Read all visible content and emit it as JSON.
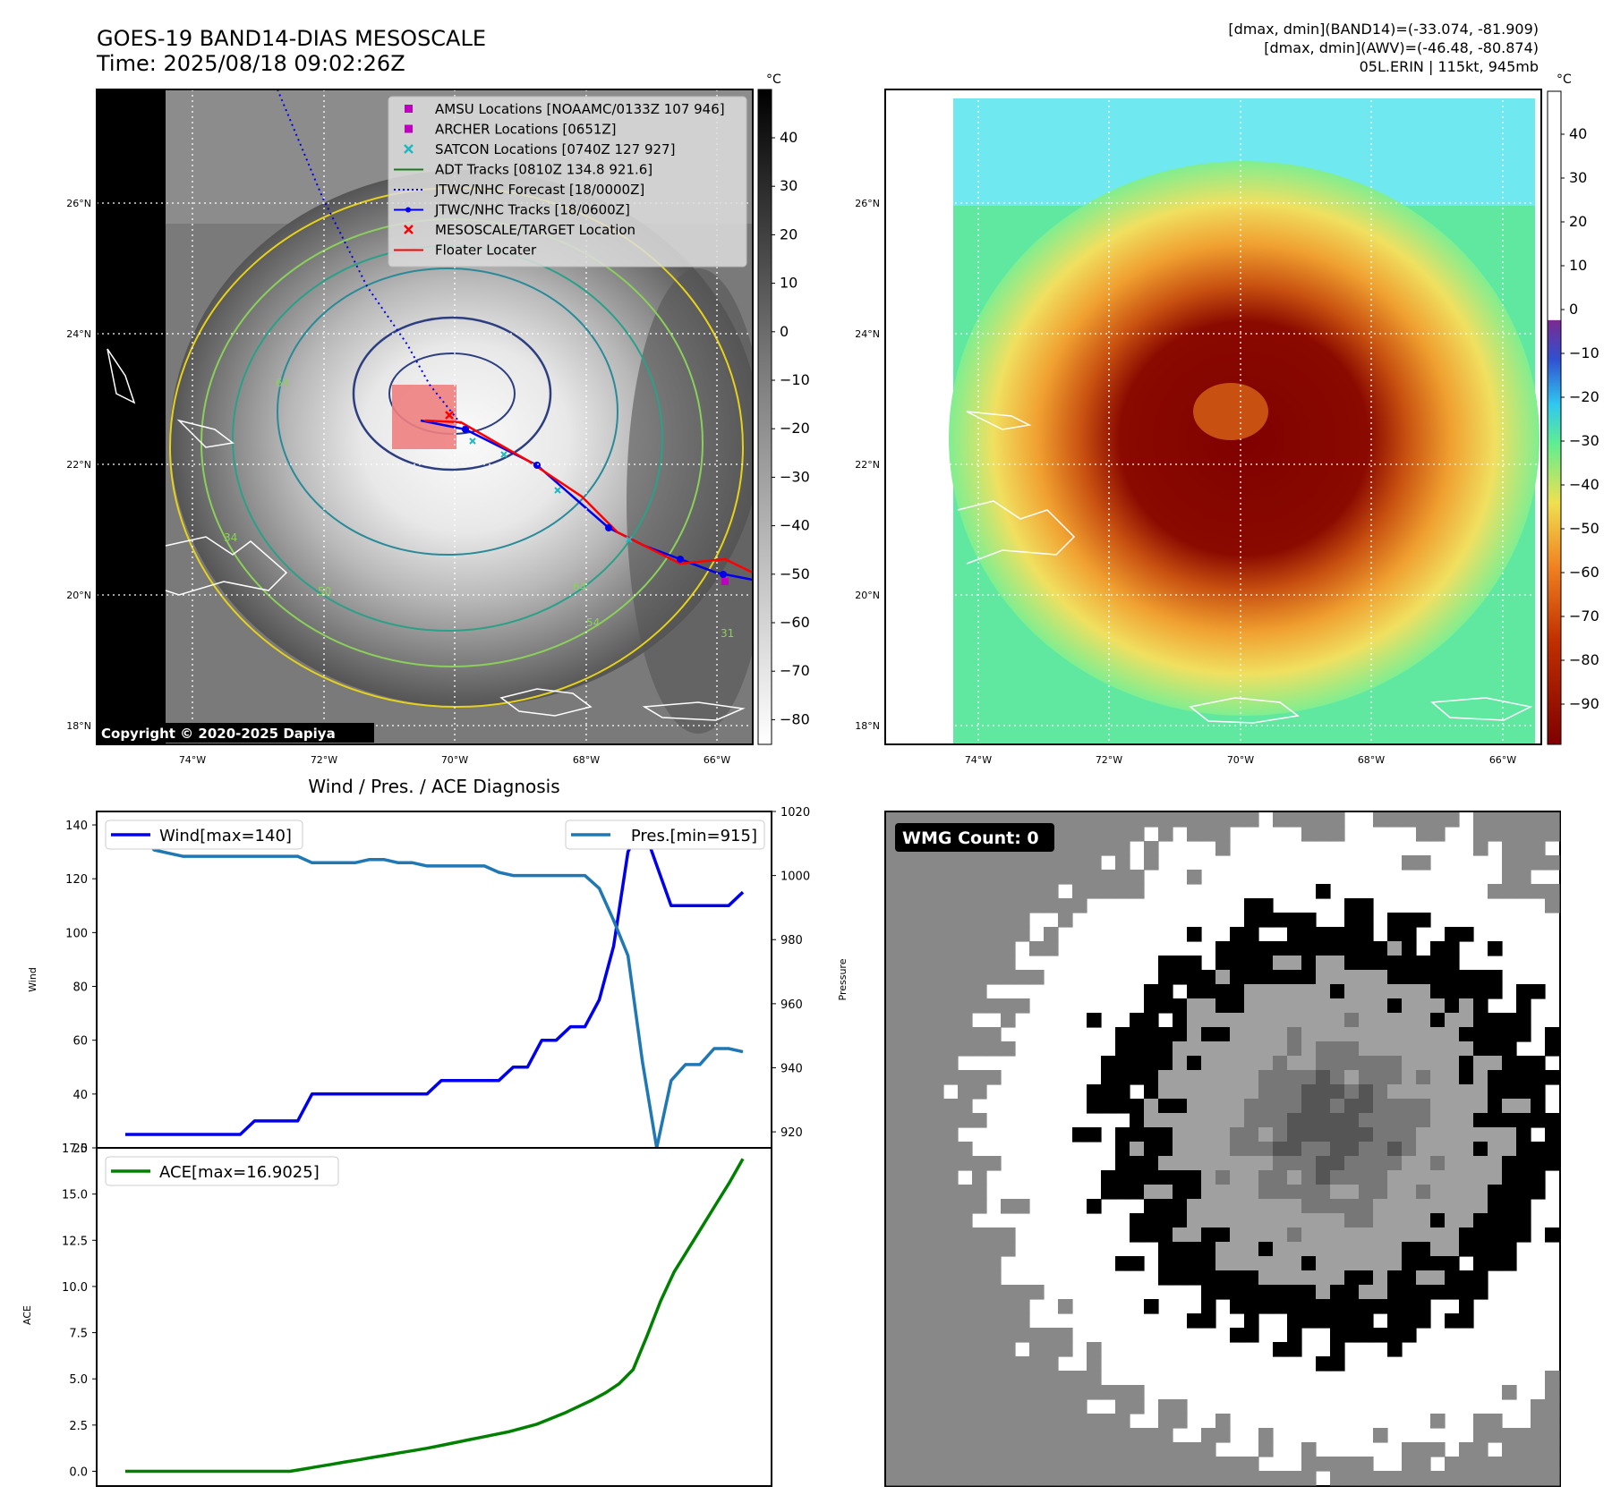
{
  "header": {
    "title_line1": "GOES-19 BAND14-DIAS MESOSCALE",
    "title_line2": "Time: 2025/08/18 09:02:26Z",
    "meta_line1": "[dmax, dmin](BAND14)=(-33.074, -81.909)",
    "meta_line2": "[dmax, dmin](AWV)=(-46.48, -80.874)",
    "meta_line3": "05L.ERIN | 115kt, 945mb"
  },
  "map": {
    "lat_labels": [
      "26°N",
      "24°N",
      "22°N",
      "20°N",
      "18°N"
    ],
    "lon_labels": [
      "74°W",
      "72°W",
      "70°W",
      "68°W",
      "66°W"
    ],
    "copyright": "Copyright © 2020-2025 Dapiya",
    "legend": [
      {
        "label": "AMSU Locations [NOAAMC/0133Z 107 946]",
        "color": "#c000c0",
        "marker": "square"
      },
      {
        "label": "ARCHER Locations [0651Z]",
        "color": "#c000c0",
        "marker": "square"
      },
      {
        "label": "SATCON Locations [0740Z 127 927]",
        "color": "#1fb8c0",
        "marker": "x"
      },
      {
        "label": "ADT Tracks [0810Z 134.8 921.6]",
        "color": "#1a7a1a",
        "marker": "line"
      },
      {
        "label": "JTWC/NHC Forecast [18/0000Z]",
        "color": "#0000ee",
        "marker": "dotted"
      },
      {
        "label": "JTWC/NHC Tracks [18/0600Z]",
        "color": "#0000ee",
        "marker": "line-dot"
      },
      {
        "label": "MESOSCALE/TARGET Location",
        "color": "#ff0000",
        "marker": "x"
      },
      {
        "label": "Floater Locater",
        "color": "#ff0000",
        "marker": "line"
      }
    ],
    "contour_labels": [
      "34",
      "64",
      "50",
      "54",
      "64",
      "31"
    ]
  },
  "colorbar_left": {
    "unit": "°C",
    "ticks": [
      "40",
      "30",
      "20",
      "10",
      "0",
      "−10",
      "−20",
      "−30",
      "−40",
      "−50",
      "−60",
      "−70",
      "−80"
    ]
  },
  "colorbar_right": {
    "unit": "°C",
    "ticks": [
      "40",
      "30",
      "20",
      "10",
      "0",
      "−10",
      "−20",
      "−30",
      "−40",
      "−50",
      "−60",
      "−70",
      "−80",
      "−90"
    ]
  },
  "chart_data": [
    {
      "type": "line",
      "title": "Wind / Pres. / ACE Diagnosis",
      "ylabel": "Wind",
      "y2label": "Pressure",
      "ylim": [
        20,
        145
      ],
      "y2lim": [
        915,
        1020
      ],
      "yticks": [
        "140",
        "120",
        "100",
        "80",
        "60",
        "40",
        "20"
      ],
      "y2ticks": [
        "1020",
        "1000",
        "980",
        "960",
        "940",
        "920"
      ],
      "series": [
        {
          "name": "Wind[max=140]",
          "axis": "left",
          "color": "#0000ee",
          "values": [
            25,
            25,
            25,
            25,
            25,
            25,
            25,
            25,
            25,
            30,
            30,
            30,
            30,
            40,
            40,
            40,
            40,
            40,
            40,
            40,
            40,
            40,
            45,
            45,
            45,
            45,
            45,
            50,
            50,
            60,
            60,
            65,
            65,
            75,
            95,
            130,
            140,
            125,
            110,
            110,
            110,
            110,
            110,
            115
          ]
        },
        {
          "name": "Pres.[min=915]",
          "axis": "right",
          "color": "#1f77b4",
          "values": [
            1014,
            1014,
            1008,
            1007,
            1006,
            1006,
            1006,
            1006,
            1006,
            1006,
            1006,
            1006,
            1006,
            1004,
            1004,
            1004,
            1004,
            1005,
            1005,
            1004,
            1004,
            1003,
            1003,
            1003,
            1003,
            1003,
            1001,
            1000,
            1000,
            1000,
            1000,
            1000,
            1000,
            996,
            986,
            975,
            942,
            915,
            936,
            941,
            941,
            946,
            946,
            945
          ]
        }
      ]
    },
    {
      "type": "line",
      "ylabel": "ACE",
      "ylim": [
        -0.8,
        17.5
      ],
      "yticks": [
        "17.5",
        "15.0",
        "12.5",
        "10.0",
        "7.5",
        "5.0",
        "2.5",
        "0.0"
      ],
      "series": [
        {
          "name": "ACE[max=16.9025]",
          "color": "#008000",
          "values": [
            0,
            0,
            0,
            0,
            0,
            0,
            0,
            0,
            0,
            0,
            0,
            0,
            0,
            0.12,
            0.25,
            0.37,
            0.5,
            0.62,
            0.75,
            0.87,
            1.0,
            1.12,
            1.25,
            1.4,
            1.55,
            1.7,
            1.85,
            2.0,
            2.15,
            2.35,
            2.55,
            2.85,
            3.15,
            3.5,
            3.85,
            4.25,
            4.75,
            5.5,
            7.3,
            9.2,
            10.8,
            12.0,
            13.2,
            14.4,
            15.6,
            16.9025
          ]
        }
      ]
    }
  ],
  "wmg": {
    "label": "WMG Count: 0"
  }
}
